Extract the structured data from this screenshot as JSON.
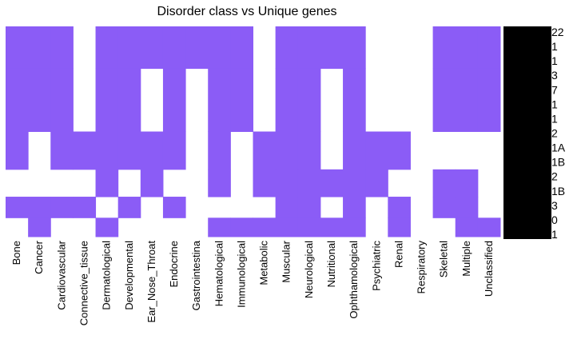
{
  "chart_data": {
    "type": "heatmap",
    "title": "Disorder class vs Unique genes",
    "xlabel": "",
    "ylabel": "",
    "fill_color": "#8b5cf6",
    "empty_color": "#ffffff",
    "columns": [
      "Bone",
      "Cancer",
      "Cardiovascular",
      "Connective_tissue",
      "Dermatological",
      "Developmental",
      "Ear_Nose_Throat",
      "Endocrine",
      "Gastrointestina",
      "Hematological",
      "Immunological",
      "Metabolic",
      "Muscular",
      "Neurological",
      "Nutritional",
      "Ophthamological",
      "Psychiatric",
      "Renal",
      "Respiratory",
      "Skeletal",
      "Multiple",
      "Unclassified"
    ],
    "rows": [
      {
        "label": "",
        "values": [
          1,
          1,
          1,
          0,
          1,
          1,
          1,
          1,
          1,
          1,
          1,
          0,
          1,
          1,
          1,
          1,
          0,
          0,
          0,
          1,
          1,
          1
        ]
      },
      {
        "label": "",
        "values": [
          1,
          1,
          1,
          0,
          1,
          1,
          0,
          1,
          0,
          1,
          1,
          0,
          1,
          1,
          0,
          1,
          0,
          0,
          0,
          1,
          1,
          1
        ]
      },
      {
        "label": "",
        "values": [
          1,
          0,
          1,
          1,
          1,
          1,
          1,
          1,
          0,
          1,
          0,
          1,
          1,
          1,
          0,
          1,
          1,
          1,
          0,
          0,
          0,
          0
        ]
      },
      {
        "label": "",
        "values": [
          0,
          0,
          0,
          0,
          1,
          0,
          1,
          0,
          0,
          1,
          0,
          1,
          1,
          1,
          1,
          1,
          1,
          0,
          0,
          1,
          1,
          0
        ]
      },
      {
        "label": "",
        "values": [
          1,
          1,
          1,
          1,
          0,
          1,
          0,
          1,
          0,
          0,
          0,
          0,
          1,
          1,
          0,
          1,
          0,
          1,
          0,
          1,
          1,
          0
        ]
      },
      {
        "label": "",
        "values": [
          0,
          1,
          0,
          0,
          1,
          0,
          0,
          0,
          0,
          1,
          1,
          1,
          1,
          1,
          1,
          1,
          0,
          1,
          0,
          0,
          1,
          1
        ]
      }
    ],
    "row_boundaries": [
      0,
      0.2,
      0.5,
      0.68,
      0.81,
      0.91,
      1.0
    ],
    "ylabels_visible": [
      "22",
      "1",
      "1",
      "3",
      "7",
      "1",
      "1",
      "2",
      "1A",
      "1B",
      "2",
      "1B",
      "3",
      "0",
      "1"
    ],
    "grid": false,
    "legend": "none"
  }
}
